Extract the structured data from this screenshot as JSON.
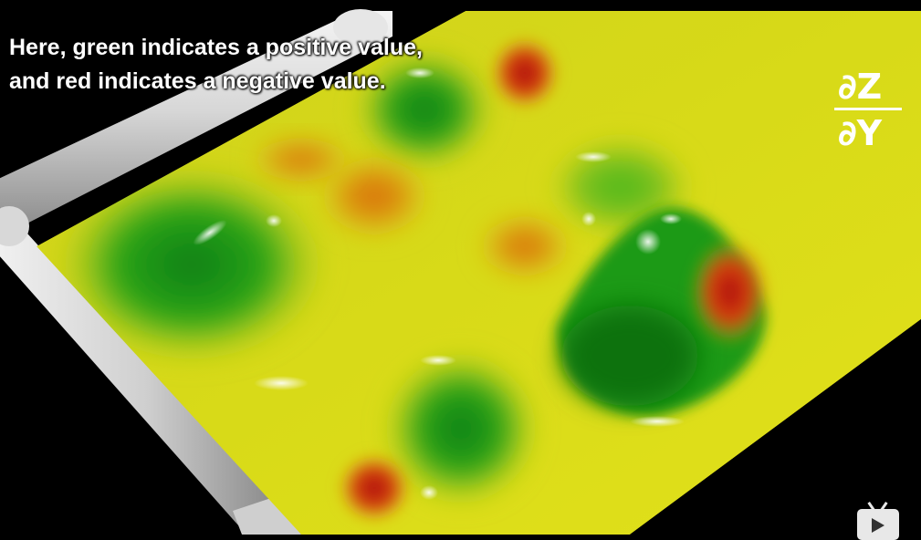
{
  "caption": {
    "line1": "Here, green indicates a positive value,",
    "line2": "and red indicates a negative value."
  },
  "formula": {
    "numerator": "∂Z",
    "denominator": "∂Y"
  },
  "icons": {
    "player": "play-icon"
  },
  "colors": {
    "positive": "#22a41c",
    "negative": "#c8140c",
    "neutral": "#d6d71a",
    "background": "#000000"
  }
}
